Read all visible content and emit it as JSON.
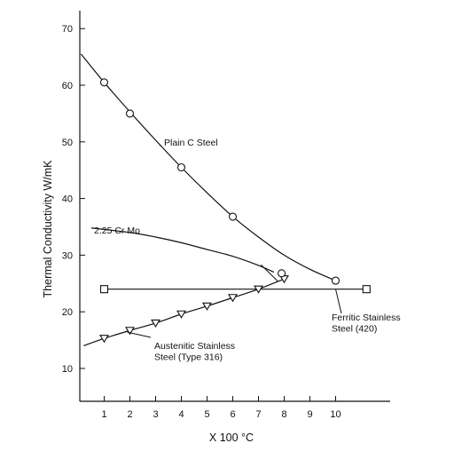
{
  "chart_data": {
    "type": "line",
    "title": "",
    "xlabel": "X 100 °C",
    "ylabel": "Thermal Conductivity W/mK",
    "xlim": [
      0,
      12
    ],
    "ylim": [
      5,
      75
    ],
    "x_ticks": [
      1,
      2,
      3,
      4,
      5,
      6,
      7,
      8,
      9,
      10
    ],
    "y_ticks": [
      10,
      20,
      30,
      40,
      50,
      60,
      70
    ],
    "grid": false,
    "legend": "none",
    "series": [
      {
        "name": "Plain C Steel",
        "marker": "circle",
        "curve": [
          [
            0.1,
            65.5
          ],
          [
            1,
            60.5
          ],
          [
            2,
            55.3
          ],
          [
            3,
            50.3
          ],
          [
            4,
            45.5
          ],
          [
            5,
            41
          ],
          [
            6,
            36.8
          ],
          [
            7,
            33.2
          ],
          [
            8,
            30
          ],
          [
            9,
            27.5
          ],
          [
            10,
            25.5
          ]
        ],
        "markers": [
          [
            1,
            60.5
          ],
          [
            2,
            55
          ],
          [
            4,
            45.5
          ],
          [
            6,
            36.8
          ],
          [
            10,
            25.5
          ]
        ]
      },
      {
        "name": "2.25 Cr Mo",
        "marker": "none",
        "curve": [
          [
            0.5,
            34.8
          ],
          [
            2,
            34
          ],
          [
            3,
            33.2
          ],
          [
            4,
            32.2
          ],
          [
            5,
            31
          ],
          [
            6,
            29.8
          ],
          [
            7,
            28.2
          ],
          [
            7.6,
            27
          ]
        ],
        "markers": []
      },
      {
        "name": "Ferritic Stainless Steel (420)",
        "marker": "square",
        "curve": [
          [
            1,
            24
          ],
          [
            11.2,
            24
          ]
        ],
        "markers": [
          [
            1,
            24
          ],
          [
            11.2,
            24
          ]
        ]
      },
      {
        "name": "Austenitic Stainless Steel (Type 316)",
        "marker": "triangle-down",
        "curve": [
          [
            0.2,
            14
          ],
          [
            1,
            15.3
          ],
          [
            2,
            16.7
          ],
          [
            3,
            18
          ],
          [
            4,
            19.6
          ],
          [
            5,
            21
          ],
          [
            6,
            22.5
          ],
          [
            7,
            24
          ],
          [
            8,
            25.8
          ]
        ],
        "markers": [
          [
            1,
            15.3
          ],
          [
            2,
            16.7
          ],
          [
            3,
            18
          ],
          [
            4,
            19.6
          ],
          [
            5,
            21
          ],
          [
            6,
            22.5
          ],
          [
            7,
            24
          ],
          [
            8,
            25.8
          ]
        ]
      }
    ],
    "extra_markers": [
      {
        "shape": "circle",
        "x": 7.9,
        "y": 26.8
      }
    ],
    "annotations": [
      {
        "text": "Plain C Steel",
        "series": 0
      },
      {
        "text": "2.25 Cr Mo",
        "series": 1
      },
      {
        "lines": [
          "Ferritic Stainless",
          "Steel (420)"
        ],
        "series": 2
      },
      {
        "lines": [
          "Austenitic Stainless",
          "Steel (Type 316)"
        ],
        "series": 3
      }
    ]
  }
}
